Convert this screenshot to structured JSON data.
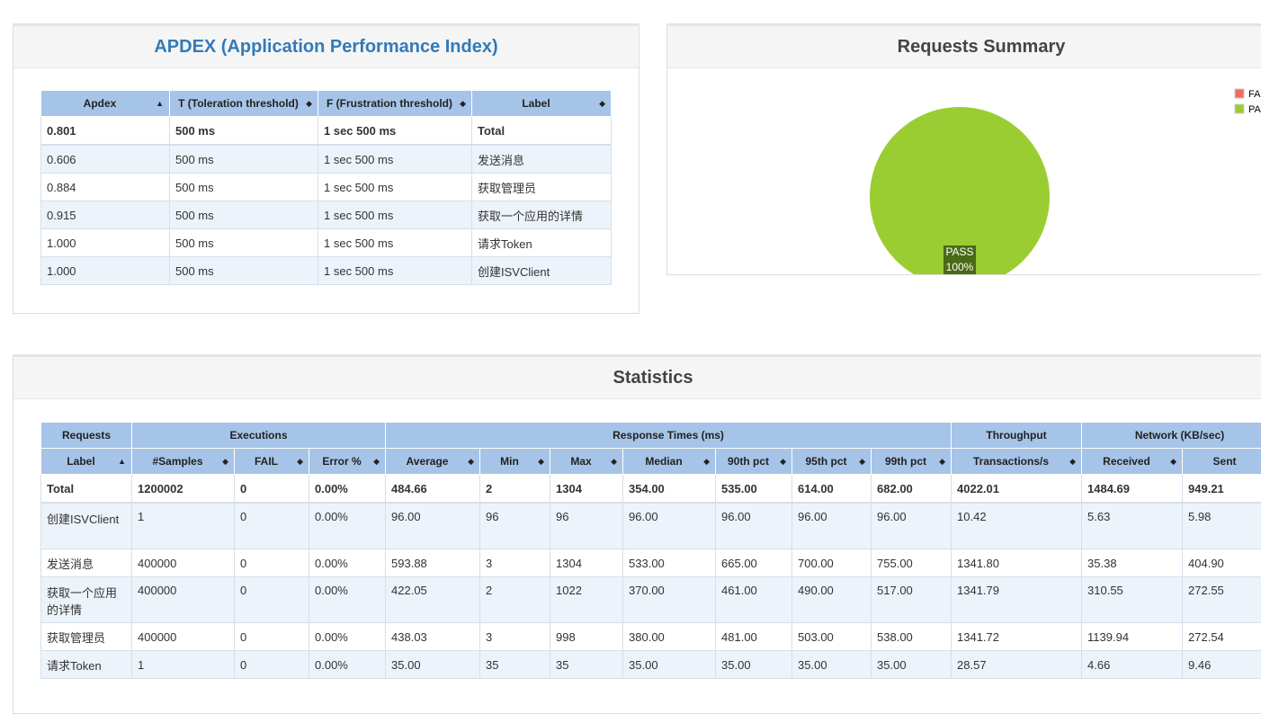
{
  "apdex": {
    "title": "APDEX (Application Performance Index)",
    "columns": [
      "Apdex",
      "T (Toleration threshold)",
      "F (Frustration threshold)",
      "Label"
    ],
    "rows": [
      [
        "0.801",
        "500 ms",
        "1 sec 500 ms",
        "Total"
      ],
      [
        "0.606",
        "500 ms",
        "1 sec 500 ms",
        "发送消息"
      ],
      [
        "0.884",
        "500 ms",
        "1 sec 500 ms",
        "获取管理员"
      ],
      [
        "0.915",
        "500 ms",
        "1 sec 500 ms",
        "获取一个应用的详情"
      ],
      [
        "1.000",
        "500 ms",
        "1 sec 500 ms",
        "请求Token"
      ],
      [
        "1.000",
        "500 ms",
        "1 sec 500 ms",
        "创建ISVClient"
      ]
    ]
  },
  "summary": {
    "title": "Requests Summary",
    "type": "pie",
    "slices": [
      {
        "name": "FAIL",
        "value": 0,
        "color": "#f26b5b"
      },
      {
        "name": "PASS",
        "value": 100,
        "value_label": "100%",
        "color": "#9acd32"
      }
    ]
  },
  "statistics": {
    "title": "Statistics",
    "groups": [
      {
        "label": "Requests",
        "span": 1
      },
      {
        "label": "Executions",
        "span": 3
      },
      {
        "label": "Response Times (ms)",
        "span": 7
      },
      {
        "label": "Throughput",
        "span": 1
      },
      {
        "label": "Network (KB/sec)",
        "span": 2
      }
    ],
    "columns": [
      "Label",
      "#Samples",
      "FAIL",
      "Error %",
      "Average",
      "Min",
      "Max",
      "Median",
      "90th pct",
      "95th pct",
      "99th pct",
      "Transactions/s",
      "Received",
      "Sent"
    ],
    "rows": [
      [
        "Total",
        "1200002",
        "0",
        "0.00%",
        "484.66",
        "2",
        "1304",
        "354.00",
        "535.00",
        "614.00",
        "682.00",
        "4022.01",
        "1484.69",
        "949.21"
      ],
      [
        "创建ISVClient",
        "1",
        "0",
        "0.00%",
        "96.00",
        "96",
        "96",
        "96.00",
        "96.00",
        "96.00",
        "96.00",
        "10.42",
        "5.63",
        "5.98"
      ],
      [
        "发送消息",
        "400000",
        "0",
        "0.00%",
        "593.88",
        "3",
        "1304",
        "533.00",
        "665.00",
        "700.00",
        "755.00",
        "1341.80",
        "35.38",
        "404.90"
      ],
      [
        "获取一个应用的详情",
        "400000",
        "0",
        "0.00%",
        "422.05",
        "2",
        "1022",
        "370.00",
        "461.00",
        "490.00",
        "517.00",
        "1341.79",
        "310.55",
        "272.55"
      ],
      [
        "获取管理员",
        "400000",
        "0",
        "0.00%",
        "438.03",
        "3",
        "998",
        "380.00",
        "481.00",
        "503.00",
        "538.00",
        "1341.72",
        "1139.94",
        "272.54"
      ],
      [
        "请求Token",
        "1",
        "0",
        "0.00%",
        "35.00",
        "35",
        "35",
        "35.00",
        "35.00",
        "35.00",
        "35.00",
        "28.57",
        "4.66",
        "9.46"
      ]
    ]
  }
}
